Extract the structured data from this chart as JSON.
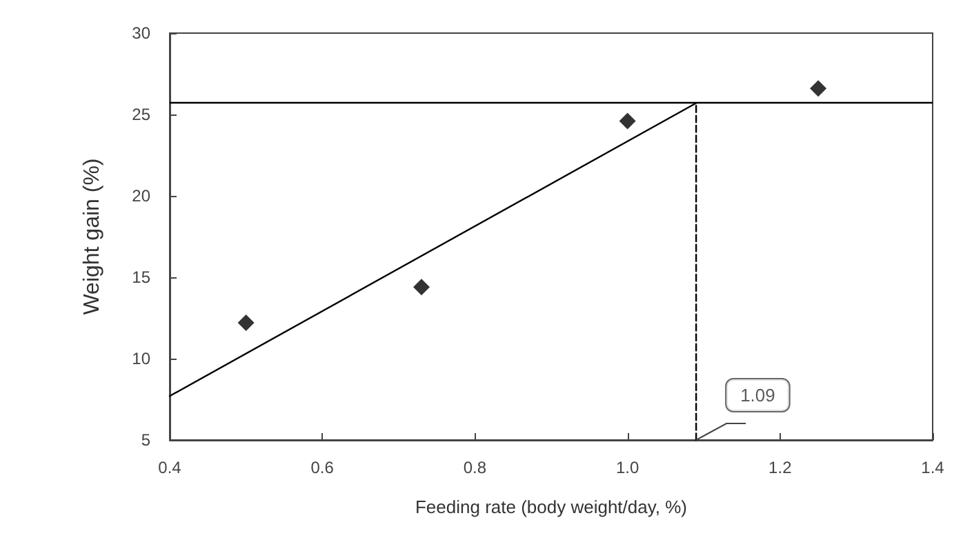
{
  "chart_data": {
    "type": "scatter",
    "xlabel": "Feeding rate (body weight/day, %)",
    "ylabel": "Weight gain (%)",
    "xlim": [
      0.4,
      1.4
    ],
    "xticks": [
      {
        "value": 0.4,
        "label": "0.4"
      },
      {
        "value": 0.6,
        "label": "0.6"
      },
      {
        "value": 0.8,
        "label": "0.8"
      },
      {
        "value": 1.0,
        "label": "1.0"
      },
      {
        "value": 1.2,
        "label": "1.2"
      },
      {
        "value": 1.4,
        "label": "1.4"
      }
    ],
    "ylim": [
      5,
      30
    ],
    "yticks": [
      5,
      10,
      15,
      20,
      25,
      30
    ],
    "grid": false,
    "ref_lines": [
      {
        "axis": "y",
        "value": 25.7,
        "color": "#000000",
        "line_style": "solid"
      }
    ],
    "series": [
      {
        "color": "#000000",
        "marker": "diamond",
        "x": [
          0.5,
          0.73,
          1.0,
          1.25
        ],
        "values": [
          12.2,
          14.4,
          24.6,
          26.6
        ]
      },
      {
        "type": "line",
        "color": "#000000",
        "marker": "none",
        "line_style": "solid",
        "x": [
          0.4,
          1.09
        ],
        "values": [
          7.7,
          25.7
        ]
      },
      {
        "type": "line",
        "color": "#000000",
        "marker": "none",
        "line_style": "dashed",
        "x": [
          1.09,
          1.09
        ],
        "values": [
          5,
          25.7
        ]
      }
    ],
    "annotations": [
      {
        "text": "1.09",
        "x": 1.09,
        "y": 5
      }
    ]
  }
}
